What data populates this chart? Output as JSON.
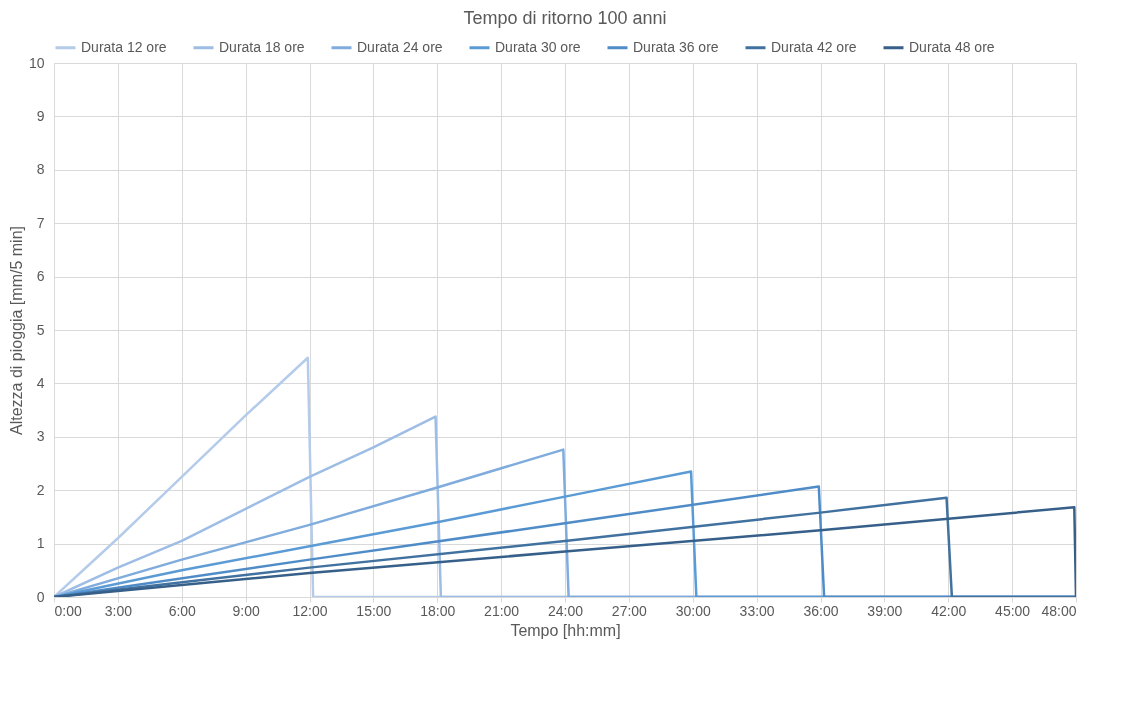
{
  "chart_data": {
    "type": "line",
    "title": "Tempo di ritorno 100 anni",
    "xlabel": "Tempo [hh:mm]",
    "ylabel": "Altezza di pioggia [mm/5 min]",
    "xlim": [
      0,
      48
    ],
    "xticks": [
      {
        "value": 0,
        "label": "0:00"
      },
      {
        "value": 3,
        "label": "3:00"
      },
      {
        "value": 6,
        "label": "6:00"
      },
      {
        "value": 9,
        "label": "9:00"
      },
      {
        "value": 12,
        "label": "12:00"
      },
      {
        "value": 15,
        "label": "15:00"
      },
      {
        "value": 18,
        "label": "18:00"
      },
      {
        "value": 21,
        "label": "21:00"
      },
      {
        "value": 24,
        "label": "24:00"
      },
      {
        "value": 27,
        "label": "27:00"
      },
      {
        "value": 30,
        "label": "30:00"
      },
      {
        "value": 33,
        "label": "33:00"
      },
      {
        "value": 36,
        "label": "36:00"
      },
      {
        "value": 39,
        "label": "39:00"
      },
      {
        "value": 42,
        "label": "42:00"
      },
      {
        "value": 45,
        "label": "45:00"
      },
      {
        "value": 48,
        "label": "48:00"
      }
    ],
    "ylim": [
      0,
      10
    ],
    "yticks": [
      0,
      1,
      2,
      3,
      4,
      5,
      6,
      7,
      8,
      9,
      10
    ],
    "grid": true,
    "legend": "top",
    "marker": "none",
    "line_style": "solid",
    "series": [
      {
        "name": "Durata 12 ore",
        "color": "#b4cbea",
        "x": [
          0,
          3,
          6,
          9,
          11.92,
          12.17,
          48
        ],
        "values": [
          0,
          1.1,
          2.25,
          3.4,
          4.48,
          0,
          0
        ]
      },
      {
        "name": "Durata 18 ore",
        "color": "#9dbde5",
        "x": [
          0,
          3,
          6,
          9,
          12,
          15,
          17.92,
          18.17,
          48
        ],
        "values": [
          0,
          0.55,
          1.05,
          1.65,
          2.25,
          2.8,
          3.38,
          0,
          0
        ]
      },
      {
        "name": "Durata 24 ore",
        "color": "#80acdd",
        "x": [
          0,
          6,
          12,
          18,
          23.92,
          24.17,
          48
        ],
        "values": [
          0,
          0.7,
          1.35,
          2.05,
          2.76,
          0,
          0
        ]
      },
      {
        "name": "Durata 30 ore",
        "color": "#5b9bd5",
        "x": [
          0,
          6,
          12,
          18,
          24,
          29.92,
          30.17,
          48
        ],
        "values": [
          0,
          0.5,
          0.95,
          1.4,
          1.88,
          2.35,
          0,
          0
        ]
      },
      {
        "name": "Durata 36 ore",
        "color": "#4f8cc7",
        "x": [
          0,
          12,
          24,
          35.92,
          36.17,
          48
        ],
        "values": [
          0,
          0.7,
          1.38,
          2.07,
          0,
          0
        ]
      },
      {
        "name": "Durata 42 ore",
        "color": "#41719f",
        "x": [
          0,
          12,
          24,
          36,
          41.92,
          42.17,
          48
        ],
        "values": [
          0,
          0.55,
          1.05,
          1.58,
          1.86,
          0,
          0
        ]
      },
      {
        "name": "Durata 48 ore",
        "color": "#365f8a",
        "x": [
          0,
          12,
          24,
          36,
          47.92,
          48
        ],
        "values": [
          0,
          0.45,
          0.85,
          1.25,
          1.68,
          0
        ]
      }
    ]
  }
}
